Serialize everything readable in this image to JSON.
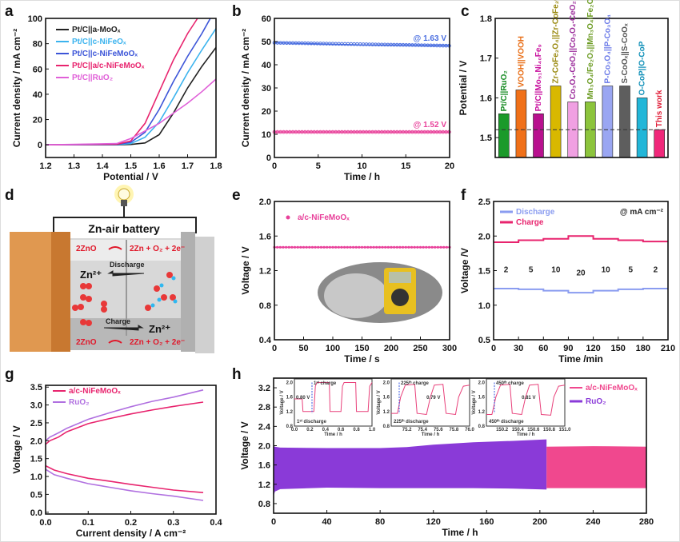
{
  "panel_labels": {
    "a": "a",
    "b": "b",
    "c": "c",
    "d": "d",
    "e": "e",
    "f": "f",
    "g": "g",
    "h": "h"
  },
  "diagram_d": {
    "title": "Zn-air battery",
    "top_reactant": "2ZnO",
    "top_product": "2Zn + O₂ + 2e⁻",
    "discharge_label": "Discharge",
    "charge_label": "Charge",
    "ion_left": "Zn²⁺",
    "ion_right": "Zn²⁺",
    "bottom_reactant": "2ZnO",
    "bottom_product": "2Zn + O₂ + 2e⁻"
  },
  "chart_data": [
    {
      "id": "a",
      "type": "line",
      "xlabel": "Potential / V",
      "ylabel": "Current density / mA cm⁻²",
      "xlim": [
        1.2,
        1.8
      ],
      "ylim": [
        -10,
        100
      ],
      "xticks": [
        "1.2",
        "1.3",
        "1.4",
        "1.5",
        "1.6",
        "1.7",
        "1.8"
      ],
      "yticks": [
        "0",
        "20",
        "40",
        "60",
        "80",
        "100"
      ],
      "series": [
        {
          "name": "Pt/C||a-MoOₓ",
          "color": "#222222",
          "x": [
            1.2,
            1.45,
            1.5,
            1.55,
            1.6,
            1.65,
            1.7,
            1.75,
            1.8
          ],
          "y": [
            0,
            0,
            0.3,
            1.5,
            8,
            25,
            45,
            62,
            77
          ]
        },
        {
          "name": "Pt/C||c-NiFeOₓ",
          "color": "#3bb3ee",
          "x": [
            1.2,
            1.45,
            1.5,
            1.55,
            1.6,
            1.65,
            1.7,
            1.75,
            1.8
          ],
          "y": [
            0,
            0.2,
            1,
            6,
            18,
            37,
            57,
            75,
            92
          ]
        },
        {
          "name": "Pt/C||c-NiFeMoOₓ",
          "color": "#3c55d8",
          "x": [
            1.2,
            1.45,
            1.5,
            1.55,
            1.6,
            1.65,
            1.7,
            1.75,
            1.78
          ],
          "y": [
            0,
            0.3,
            2,
            10,
            28,
            50,
            70,
            88,
            100
          ]
        },
        {
          "name": "Pt/C||a/c-NiFeMoOₓ",
          "color": "#e8246e",
          "x": [
            1.2,
            1.45,
            1.5,
            1.55,
            1.6,
            1.65,
            1.7,
            1.735
          ],
          "y": [
            0,
            0.5,
            3,
            17,
            42,
            67,
            88,
            100
          ]
        },
        {
          "name": "Pt/C||RuO₂",
          "color": "#e060d8",
          "x": [
            1.2,
            1.45,
            1.5,
            1.55,
            1.6,
            1.65,
            1.7,
            1.75,
            1.8
          ],
          "y": [
            0,
            1,
            5,
            11,
            17,
            25,
            33,
            42,
            52
          ]
        }
      ]
    },
    {
      "id": "b",
      "type": "line",
      "xlabel": "Time / h",
      "ylabel": "Current density / mA cm⁻²",
      "xlim": [
        0,
        20
      ],
      "ylim": [
        0,
        60
      ],
      "xticks": [
        "0",
        "5",
        "10",
        "15",
        "20"
      ],
      "yticks": [
        "0",
        "10",
        "20",
        "30",
        "40",
        "50",
        "60"
      ],
      "series": [
        {
          "name": "@ 1.63 V",
          "color": "#4a6ee0",
          "x": [
            0,
            5,
            10,
            15,
            20
          ],
          "y": [
            49.5,
            49,
            48.5,
            48.5,
            48.2
          ]
        },
        {
          "name": "@ 1.52 V",
          "color": "#e8409a",
          "x": [
            0,
            5,
            10,
            15,
            20
          ],
          "y": [
            11,
            11,
            11,
            11,
            11
          ]
        }
      ]
    },
    {
      "id": "c",
      "type": "bar",
      "xlabel": "",
      "ylabel": "Potential / V",
      "xlim": [
        0,
        10
      ],
      "ylim": [
        1.45,
        1.8
      ],
      "xticks": [],
      "yticks": [
        "1.5",
        "1.6",
        "1.7",
        "1.8"
      ],
      "reference_line": 1.52,
      "categories": [
        "Pt/C||RuO₂",
        "VOOH||VOOH",
        "Pt/C||Mo₅₁Ni₄₀Fe₉",
        "Zr-CoFe₂O₄||Zr-CoFe₂O₄",
        "Co₃O₄-CeO₂||Co₃O₄-CeO₂",
        "Mn₃O₄/Fe₂O₃||Mn₃O₄/Fe₂O₃",
        "P-Co₃O₄||P-Co₃O₄",
        "S-CoOₓ||S-CoOₓ",
        "O-CoP||O-CoP",
        "This work"
      ],
      "values": [
        1.56,
        1.62,
        1.56,
        1.63,
        1.59,
        1.59,
        1.63,
        1.63,
        1.6,
        1.52
      ],
      "colors": [
        "#1b9a2a",
        "#f07018",
        "#b8108e",
        "#d8b800",
        "#f0a0e2",
        "#8cc43c",
        "#9aa6f2",
        "#5e5e5e",
        "#22b6d8",
        "#f0287a"
      ],
      "label_colors": [
        "#138a20",
        "#e86a10",
        "#c8109e",
        "#9a8a10",
        "#9a2a9a",
        "#6a9a20",
        "#6a7ae8",
        "#555555",
        "#1090b8",
        "#e0203a"
      ]
    },
    {
      "id": "e",
      "type": "line",
      "xlabel": "Time / s",
      "ylabel": "Voltage / V",
      "xlim": [
        0,
        300
      ],
      "ylim": [
        0.4,
        2.0
      ],
      "xticks": [
        "0",
        "50",
        "100",
        "150",
        "200",
        "250",
        "300"
      ],
      "yticks": [
        "0.4",
        "0.8",
        "1.2",
        "1.6",
        "2.0"
      ],
      "series": [
        {
          "name": "a/c-NiFeMoOₓ",
          "color": "#e8409a",
          "x": [
            0,
            300
          ],
          "y": [
            1.47,
            1.47
          ]
        }
      ]
    },
    {
      "id": "f",
      "type": "line",
      "xlabel": "Time /min",
      "ylabel": "Voltage /V",
      "xlim": [
        0,
        210
      ],
      "ylim": [
        0.5,
        2.5
      ],
      "xticks": [
        "0",
        "30",
        "60",
        "90",
        "120",
        "150",
        "180",
        "210"
      ],
      "yticks": [
        "0.5",
        "1.0",
        "1.5",
        "2.0",
        "2.5"
      ],
      "unit_note": "@ mA cm⁻²",
      "current_densities": [
        "2",
        "5",
        "10",
        "20",
        "10",
        "5",
        "2"
      ],
      "series": [
        {
          "name": "Discharge",
          "color": "#8a9cf0",
          "steps": [
            1.24,
            1.23,
            1.21,
            1.18,
            1.21,
            1.23,
            1.24
          ]
        },
        {
          "name": "Charge",
          "color": "#e8246e",
          "steps": [
            1.91,
            1.94,
            1.96,
            2.0,
            1.96,
            1.94,
            1.92
          ]
        }
      ]
    },
    {
      "id": "g",
      "type": "line",
      "xlabel": "Current density / A cm⁻²",
      "ylabel": "Voltage / V",
      "xlim": [
        0,
        0.4
      ],
      "ylim": [
        -0.05,
        3.55
      ],
      "xticks": [
        "0.0",
        "0.1",
        "0.2",
        "0.3",
        "0.4"
      ],
      "yticks": [
        "0.0",
        "0.5",
        "1.0",
        "1.5",
        "2.0",
        "2.5",
        "3.0",
        "3.5"
      ],
      "series": [
        {
          "name": "a/c-NiFeMoOₓ",
          "color": "#e8246e",
          "x": [
            0,
            0.01,
            0.03,
            0.05,
            0.1,
            0.15,
            0.2,
            0.25,
            0.3,
            0.37
          ],
          "y": [
            1.9,
            2.0,
            2.1,
            2.25,
            2.48,
            2.62,
            2.75,
            2.86,
            2.96,
            3.08
          ]
        },
        {
          "name": "a/c-NiFeMoOₓ discharge",
          "color": "#e8246e",
          "x": [
            0,
            0.02,
            0.05,
            0.1,
            0.15,
            0.2,
            0.25,
            0.3,
            0.37
          ],
          "y": [
            1.3,
            1.18,
            1.08,
            0.95,
            0.87,
            0.78,
            0.7,
            0.62,
            0.55
          ]
        },
        {
          "name": "RuO₂",
          "color": "#b070e0",
          "x": [
            0,
            0.01,
            0.03,
            0.05,
            0.1,
            0.15,
            0.2,
            0.25,
            0.3,
            0.37
          ],
          "y": [
            2.0,
            2.1,
            2.22,
            2.35,
            2.6,
            2.78,
            2.95,
            3.1,
            3.22,
            3.42
          ]
        },
        {
          "name": "RuO₂ discharge",
          "color": "#b070e0",
          "x": [
            0,
            0.02,
            0.05,
            0.1,
            0.15,
            0.2,
            0.25,
            0.3,
            0.37
          ],
          "y": [
            1.2,
            1.05,
            0.95,
            0.8,
            0.7,
            0.6,
            0.52,
            0.45,
            0.33
          ]
        }
      ]
    },
    {
      "id": "h",
      "type": "area",
      "xlabel": "Time / h",
      "ylabel": "Voltage / V",
      "xlim": [
        0,
        280
      ],
      "ylim": [
        0.6,
        3.4
      ],
      "xticks": [
        "0",
        "40",
        "80",
        "120",
        "160",
        "200",
        "240",
        "280"
      ],
      "yticks": [
        "0.8",
        "1.2",
        "1.6",
        "2.0",
        "2.4",
        "2.8",
        "3.2"
      ],
      "series": [
        {
          "name": "a/c-NiFeMoOₓ",
          "color": "#f0488e",
          "x": [
            205,
            240,
            280
          ],
          "upper": [
            1.98,
            1.99,
            1.98
          ],
          "lower": [
            1.12,
            1.12,
            1.12
          ]
        },
        {
          "name": "RuO₂",
          "color": "#8a3ad8",
          "x": [
            0,
            1,
            5,
            40,
            80,
            100,
            120,
            150,
            180,
            205
          ],
          "upper": [
            2.0,
            1.98,
            1.96,
            1.95,
            1.95,
            1.97,
            2.02,
            2.07,
            2.1,
            2.13
          ],
          "lower": [
            0.95,
            1.05,
            1.1,
            1.13,
            1.12,
            1.12,
            1.12,
            1.12,
            1.11,
            1.09
          ]
        }
      ],
      "insets": [
        {
          "xlim": [
            0,
            1
          ],
          "xticks": [
            "0.0",
            "0.2",
            "0.4",
            "0.6",
            "0.8",
            "1.0"
          ],
          "yticks": [
            "0.8",
            "1.2",
            "1.6",
            "2.0"
          ],
          "xlabel": "Time / h",
          "ylabel": "Voltage / V",
          "charge_note": "1ˢᵗ charge",
          "gap_note": "0.80 V",
          "discharge_note": "1ˢᵗ discharge",
          "x": [
            0,
            0.1,
            0.11,
            0.25,
            0.27,
            0.29,
            0.45,
            0.46,
            0.6,
            0.62,
            0.64,
            0.79,
            0.8,
            0.95,
            0.97,
            1.0
          ],
          "y": [
            1.55,
            1.55,
            1.2,
            1.2,
            1.9,
            2.0,
            2.0,
            1.2,
            1.2,
            1.9,
            2.0,
            2.0,
            1.2,
            1.2,
            1.9,
            2.0
          ]
        },
        {
          "xlim": [
            75.0,
            76.0
          ],
          "xticks": [
            "75.2",
            "75.4",
            "75.6",
            "75.8",
            "76.0"
          ],
          "yticks": [
            "0.8",
            "1.2",
            "1.6",
            "2.0"
          ],
          "xlabel": "Time / h",
          "ylabel": "Voltage / V",
          "charge_note": "225ᵗʰ charge",
          "gap_note": "0.79 V",
          "discharge_note": "225ᵗʰ discharge",
          "x": [
            75.0,
            75.08,
            75.12,
            75.18,
            75.3,
            75.33,
            75.45,
            75.5,
            75.55,
            75.66,
            75.7,
            75.82,
            75.86,
            75.92,
            76.0
          ],
          "y": [
            1.15,
            1.15,
            1.6,
            1.93,
            1.95,
            1.15,
            1.12,
            1.6,
            1.93,
            1.95,
            1.15,
            1.12,
            1.6,
            1.9,
            1.93
          ]
        },
        {
          "xlim": [
            150.0,
            151.0
          ],
          "xticks": [
            "150.2",
            "150.4",
            "150.6",
            "150.8",
            "151.0"
          ],
          "yticks": [
            "0.8",
            "1.2",
            "1.6",
            "2.0"
          ],
          "xlabel": "Time / h",
          "ylabel": "Voltage / V",
          "charge_note": "450ᵗʰ charge",
          "gap_note": "0.81 V",
          "discharge_note": "450ᵗʰ discharge",
          "x": [
            150.0,
            150.07,
            150.12,
            150.18,
            150.3,
            150.33,
            150.45,
            150.5,
            150.55,
            150.66,
            150.7,
            150.82,
            150.86,
            150.92,
            151.0
          ],
          "y": [
            1.12,
            1.12,
            1.6,
            1.93,
            1.95,
            1.15,
            1.12,
            1.6,
            1.93,
            1.95,
            1.12,
            1.1,
            1.6,
            1.9,
            1.93
          ]
        }
      ]
    }
  ]
}
